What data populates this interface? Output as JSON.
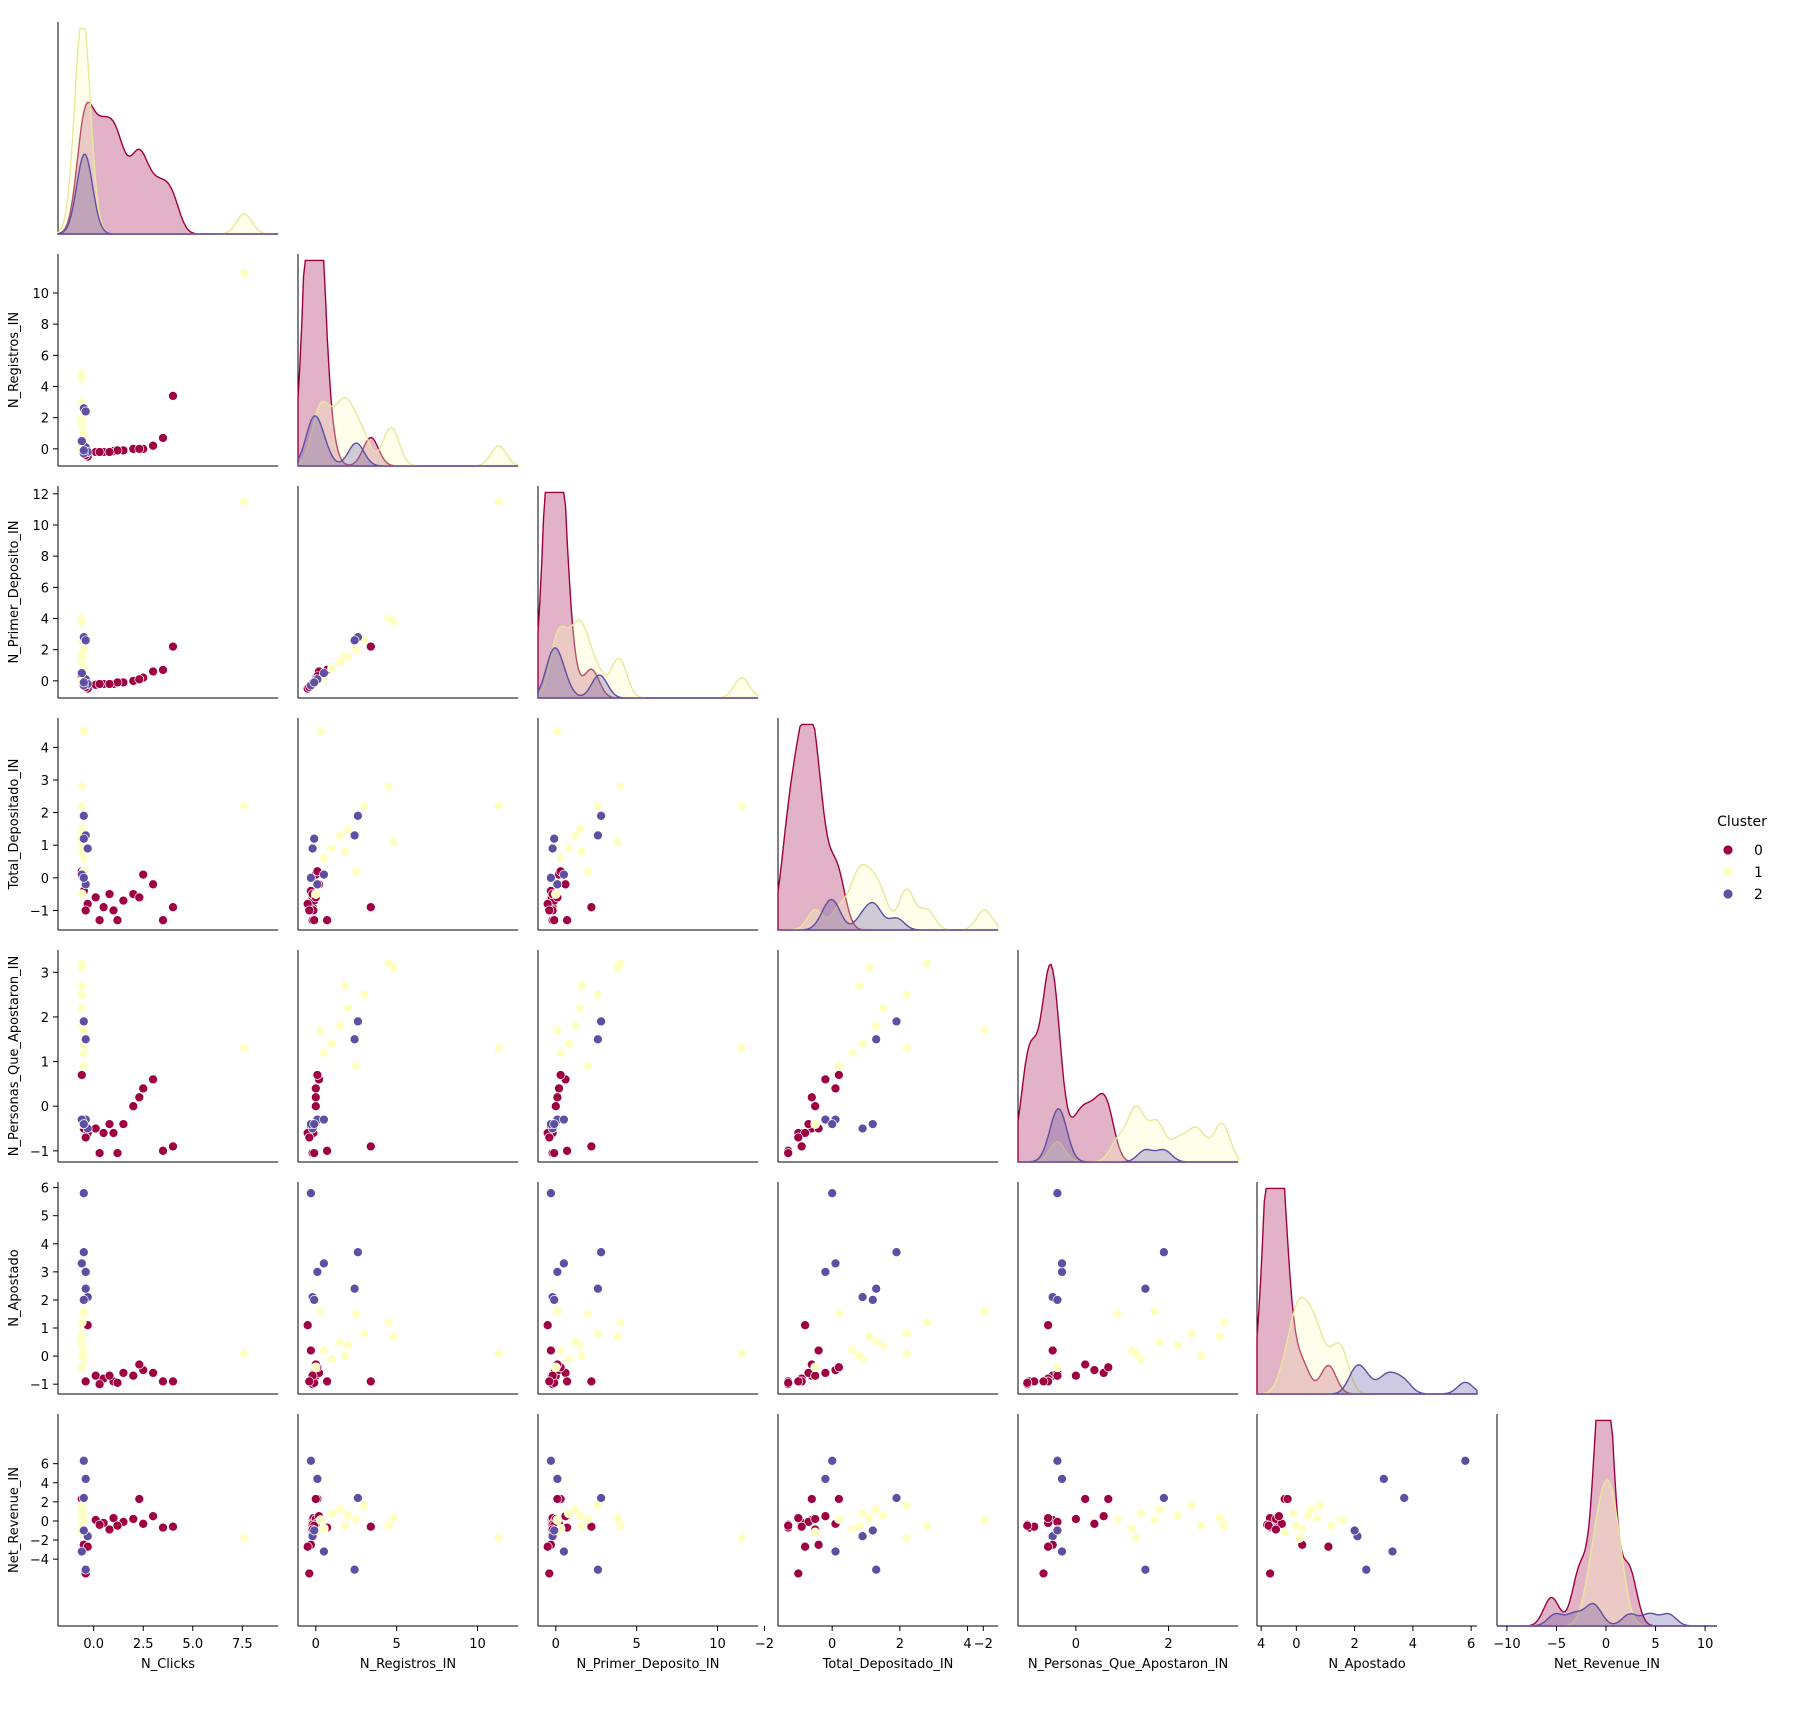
{
  "chart_data": {
    "type": "scatter",
    "kind": "pairplot-lower-triangle",
    "diagonal": "kde",
    "variables": [
      "N_Clicks",
      "N_Registros_IN",
      "N_Primer_Deposito_IN",
      "Total_Depositado_IN",
      "N_Personas_Que_Apostaron_IN",
      "N_Apostado",
      "Net_Revenue_IN"
    ],
    "ranges": {
      "N_Clicks": [
        -1.8,
        9.3
      ],
      "N_Registros_IN": [
        -1.1,
        12.5
      ],
      "N_Primer_Deposito_IN": [
        -1.1,
        12.5
      ],
      "Total_Depositado_IN": [
        -1.6,
        4.9
      ],
      "N_Personas_Que_Apostaron_IN": [
        -1.25,
        3.5
      ],
      "N_Apostado": [
        -1.35,
        6.2
      ],
      "Net_Revenue_IN": [
        -11,
        11.2
      ]
    },
    "ticks": {
      "N_Clicks": [
        "0.0",
        "2.5",
        "5.0",
        "7.5"
      ],
      "N_Registros_IN": [
        "0",
        "5",
        "10"
      ],
      "N_Primer_Deposito_IN": [
        "0",
        "5",
        "10"
      ],
      "Total_Depositado_IN": [
        "−2",
        "0",
        "2",
        "4"
      ],
      "N_Personas_Que_Apostaron_IN": [
        "−2",
        "0",
        "2",
        "4"
      ],
      "N_Apostado": [
        "0",
        "2",
        "4",
        "6"
      ],
      "Net_Revenue_IN": [
        "−10",
        "−5",
        "0",
        "5",
        "10"
      ]
    },
    "yticks": {
      "N_Registros_IN": [
        "0",
        "2",
        "4",
        "6",
        "8",
        "10"
      ],
      "N_Primer_Deposito_IN": [
        "0",
        "2",
        "4",
        "6",
        "8",
        "10",
        "12"
      ],
      "Total_Depositado_IN": [
        "−1",
        "0",
        "1",
        "2",
        "3",
        "4"
      ],
      "N_Personas_Que_Apostaron_IN": [
        "−1",
        "0",
        "1",
        "2",
        "3"
      ],
      "N_Apostado": [
        "−1",
        "0",
        "1",
        "2",
        "3",
        "4",
        "5",
        "6"
      ],
      "Net_Revenue_IN": [
        "−4",
        "−2",
        "0",
        "2",
        "4",
        "6"
      ]
    },
    "legend": {
      "title": "Cluster",
      "entries": [
        "0",
        "1",
        "2"
      ],
      "placement": "right"
    },
    "colors": {
      "0": "#9e0142",
      "1": "#ffffbf",
      "2": "#5e4fa2"
    },
    "series": [
      {
        "name": "0",
        "points": [
          [
            0.1,
            -0.2,
            -0.25,
            -0.6,
            -0.5,
            -0.7,
            0.1
          ],
          [
            0.5,
            -0.2,
            -0.2,
            -0.9,
            -0.6,
            -0.8,
            -0.2
          ],
          [
            1.0,
            -0.15,
            -0.2,
            -1.0,
            -0.6,
            -0.9,
            0.3
          ],
          [
            1.5,
            -0.1,
            -0.1,
            -0.7,
            -0.4,
            -0.6,
            -0.1
          ],
          [
            2.0,
            0.0,
            0.0,
            -0.5,
            0.0,
            -0.7,
            0.2
          ],
          [
            2.5,
            0.0,
            0.2,
            0.1,
            0.4,
            -0.5,
            -0.3
          ],
          [
            3.0,
            0.2,
            0.6,
            -0.2,
            0.6,
            -0.6,
            0.5
          ],
          [
            3.5,
            0.7,
            0.7,
            -1.3,
            -1.0,
            -0.9,
            -0.7
          ],
          [
            4.0,
            3.4,
            2.2,
            -0.9,
            -0.9,
            -0.9,
            -0.6
          ],
          [
            0.3,
            -0.2,
            -0.2,
            -1.3,
            -1.05,
            -1.0,
            -0.4
          ],
          [
            1.2,
            -0.1,
            -0.1,
            -1.3,
            -1.05,
            -0.95,
            -0.5
          ],
          [
            -0.6,
            0.1,
            0.3,
            0.2,
            0.7,
            -0.4,
            2.3
          ],
          [
            -0.5,
            -0.3,
            -0.3,
            -0.4,
            -0.5,
            0.2,
            -2.5
          ],
          [
            -0.3,
            -0.5,
            -0.5,
            -0.8,
            -0.6,
            1.1,
            -2.7
          ],
          [
            0.8,
            -0.2,
            -0.2,
            -0.5,
            -0.4,
            -0.7,
            -0.9
          ],
          [
            2.3,
            0.0,
            0.1,
            -0.6,
            0.2,
            -0.3,
            2.3
          ],
          [
            -0.4,
            -0.4,
            -0.4,
            -1.0,
            -0.7,
            -0.9,
            -5.5
          ]
        ]
      },
      {
        "name": "1",
        "points": [
          [
            -0.6,
            2.0,
            1.5,
            1.5,
            2.2,
            0.4,
            0.6
          ],
          [
            -0.6,
            4.5,
            4.0,
            2.8,
            3.2,
            1.2,
            -0.5
          ],
          [
            -0.5,
            1.0,
            0.8,
            0.9,
            1.4,
            -0.1,
            0.8
          ],
          [
            -0.6,
            3.0,
            2.6,
            2.2,
            2.5,
            0.8,
            1.6
          ],
          [
            -0.5,
            0.5,
            0.3,
            0.6,
            1.2,
            0.2,
            -0.8
          ],
          [
            -0.6,
            1.5,
            1.2,
            1.3,
            1.8,
            0.5,
            1.2
          ],
          [
            -0.6,
            0.0,
            0.0,
            -0.5,
            -0.4,
            -0.4,
            -1.2
          ],
          [
            7.6,
            11.3,
            11.5,
            2.2,
            1.3,
            0.1,
            -1.8
          ],
          [
            -0.5,
            2.5,
            2.0,
            0.2,
            0.9,
            1.5,
            0.2
          ],
          [
            -0.6,
            4.8,
            3.8,
            1.1,
            3.1,
            0.7,
            0.3
          ],
          [
            -0.6,
            1.8,
            1.6,
            0.8,
            2.7,
            0.0,
            -0.5
          ],
          [
            -0.5,
            0.3,
            0.1,
            4.5,
            1.7,
            1.6,
            0.1
          ]
        ]
      },
      {
        "name": "2",
        "points": [
          [
            -0.5,
            2.6,
            2.8,
            1.9,
            1.9,
            3.7,
            2.4
          ],
          [
            -0.4,
            0.1,
            0.1,
            -0.2,
            -0.3,
            3.0,
            4.4
          ],
          [
            -0.3,
            -0.2,
            -0.2,
            0.9,
            -0.5,
            2.1,
            -1.6
          ],
          [
            -0.6,
            0.5,
            0.5,
            0.1,
            -0.3,
            3.3,
            -3.2
          ],
          [
            -0.5,
            -0.3,
            -0.3,
            0.0,
            -0.4,
            5.8,
            6.3
          ],
          [
            -0.4,
            2.4,
            2.6,
            1.3,
            1.5,
            2.4,
            -5.1
          ],
          [
            -0.5,
            -0.1,
            -0.1,
            1.2,
            -0.4,
            2.0,
            -1.0
          ]
        ]
      }
    ]
  }
}
